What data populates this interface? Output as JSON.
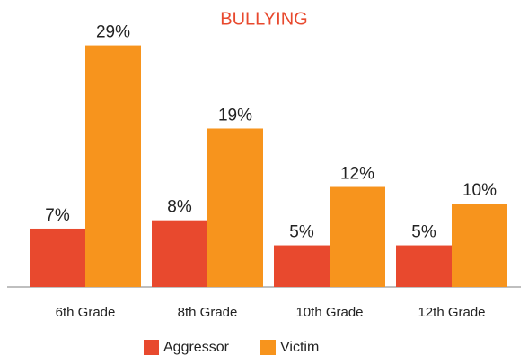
{
  "chart_data": {
    "type": "bar",
    "title": "BULLYING",
    "title_color": "#e8492e",
    "categories": [
      "6th Grade",
      "8th Grade",
      "10th Grade",
      "12th Grade"
    ],
    "series": [
      {
        "name": "Aggressor",
        "color": "#e8492e",
        "values": [
          7,
          8,
          5,
          5
        ],
        "value_labels": [
          "7%",
          "8%",
          "5%",
          "5%"
        ]
      },
      {
        "name": "Victim",
        "color": "#f7941d",
        "values": [
          29,
          19,
          12,
          10
        ],
        "value_labels": [
          "29%",
          "19%",
          "12%",
          "10%"
        ]
      }
    ],
    "ylim": [
      0,
      31
    ],
    "grid": false,
    "legend": "bottom"
  }
}
